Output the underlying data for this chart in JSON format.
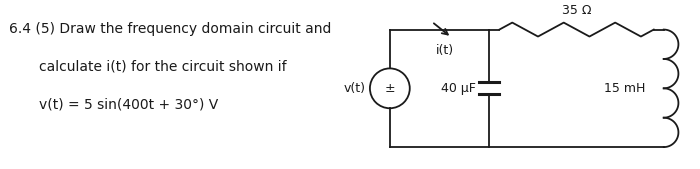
{
  "text_lines": [
    "6.4 (5) Draw the frequency domain circuit and",
    "calculate i(t) for the circuit shown if",
    "v(t) = 5 sin(400t + 30°) V"
  ],
  "text_indent": [
    0.0,
    0.3,
    0.3
  ],
  "circuit_label_35ohm": "35 Ω",
  "circuit_label_cap": "40 μF",
  "circuit_label_ind": "15 mH",
  "circuit_label_vt": "v(t)",
  "circuit_label_it": "i(t)",
  "bg_color": "#ffffff",
  "line_color": "#1a1a1a",
  "font_size_text": 10.0,
  "font_size_circuit": 9.0
}
